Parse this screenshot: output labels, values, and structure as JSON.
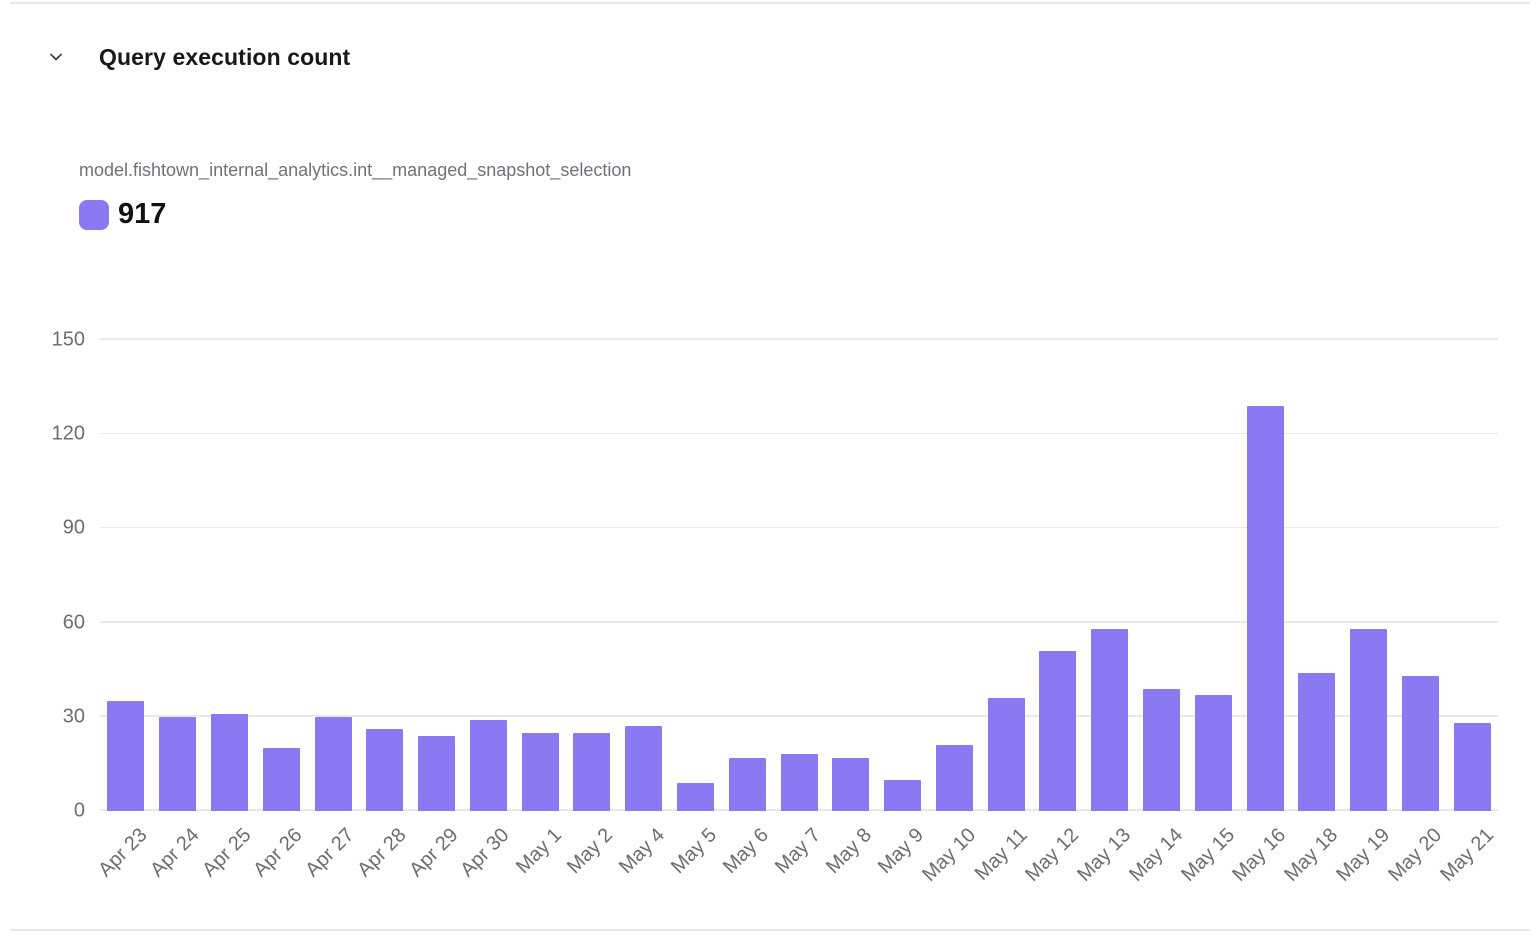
{
  "header": {
    "title": "Query execution count",
    "collapse_icon": "chevron-down"
  },
  "legend": {
    "series_name": "model.fishtown_internal_analytics.int__managed_snapshot_selection",
    "total": "917",
    "swatch_color": "#8979f2",
    "position": "top-left"
  },
  "chart_data": {
    "type": "bar",
    "title": "Query execution count",
    "categories": [
      "Apr 23",
      "Apr 24",
      "Apr 25",
      "Apr 26",
      "Apr 27",
      "Apr 28",
      "Apr 29",
      "Apr 30",
      "May 1",
      "May 2",
      "May 4",
      "May 5",
      "May 6",
      "May 7",
      "May 8",
      "May 9",
      "May 10",
      "May 11",
      "May 12",
      "May 13",
      "May 14",
      "May 15",
      "May 16",
      "May 18",
      "May 19",
      "May 20",
      "May 21"
    ],
    "series": [
      {
        "name": "model.fishtown_internal_analytics.int__managed_snapshot_selection",
        "total": 917,
        "color": "#8979f2",
        "values": [
          35,
          30,
          31,
          20,
          30,
          26,
          24,
          29,
          25,
          25,
          27,
          9,
          17,
          18,
          17,
          10,
          21,
          36,
          51,
          58,
          39,
          37,
          129,
          44,
          58,
          43,
          28
        ]
      }
    ],
    "xlabel": "",
    "ylabel": "",
    "ylim": [
      0,
      150
    ],
    "yticks": [
      0,
      30,
      60,
      90,
      120,
      150
    ],
    "grid": true,
    "x_tick_rotation": -45,
    "legend_position": "top-left"
  },
  "colors": {
    "bar": "#8979f2",
    "gridline": "#e9e9eb",
    "tick_label": "#6f6c73",
    "title": "#18181b",
    "series_name": "#71717a",
    "divider": "#e7e7e9"
  }
}
